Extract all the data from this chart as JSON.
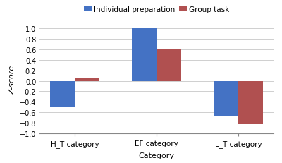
{
  "categories": [
    "H_T category",
    "EF category",
    "L_T category"
  ],
  "series": [
    {
      "label": "Individual preparation",
      "values": [
        -0.5,
        1.0,
        -0.68
      ],
      "color": "#4472C4"
    },
    {
      "label": "Group task",
      "values": [
        0.05,
        0.6,
        -0.82
      ],
      "color": "#B05050"
    }
  ],
  "ylabel": "Z-score",
  "xlabel": "Category",
  "ylim": [
    -1.0,
    1.05
  ],
  "yticks": [
    -1.0,
    -0.8,
    -0.6,
    -0.4,
    -0.2,
    0.0,
    0.2,
    0.4,
    0.6,
    0.8,
    1.0
  ],
  "bar_width": 0.3,
  "background_color": "#ffffff",
  "grid_color": "#c8c8c8",
  "spine_color": "#888888"
}
